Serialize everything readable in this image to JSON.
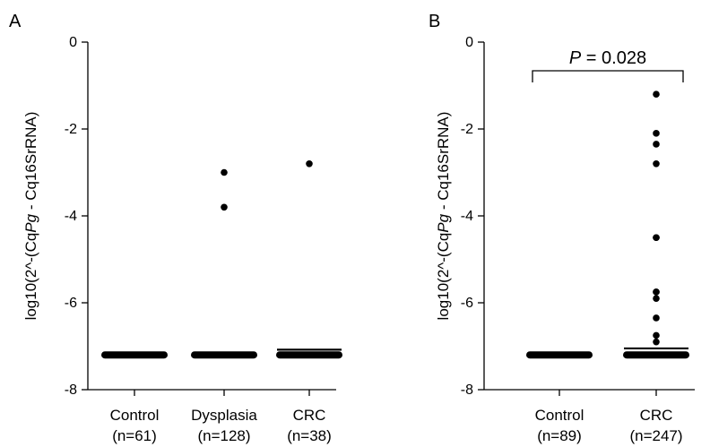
{
  "chart_data": [
    {
      "panel": "A",
      "type": "scatter",
      "ylabel": [
        "log10(2^-(Cq",
        "Pg",
        " - Cq16SrRNA)"
      ],
      "ylim": [
        -8,
        0
      ],
      "yticks": [
        "0",
        "-2",
        "-4",
        "-6",
        "-8"
      ],
      "yticks_values": [
        0,
        -2,
        -4,
        -6,
        -8
      ],
      "categories": [
        {
          "label": "Control",
          "n": "(n=61)"
        },
        {
          "label": "Dysplasia",
          "n": "(n=128)"
        },
        {
          "label": "CRC",
          "n": "(n=38)"
        }
      ],
      "series": [
        {
          "category": "Control",
          "baseline": -7.2,
          "outliers": []
        },
        {
          "category": "Dysplasia",
          "baseline": -7.2,
          "outliers": [
            -3.0,
            -3.8
          ]
        },
        {
          "category": "CRC",
          "baseline": -7.2,
          "outliers": [
            -2.8
          ]
        }
      ],
      "medians": [
        {
          "category": "Dysplasia",
          "value": -7.15
        },
        {
          "category": "CRC",
          "value": -7.08
        }
      ]
    },
    {
      "panel": "B",
      "type": "scatter",
      "ylabel": [
        "log10(2^-(Cq",
        "Pg",
        " - Cq16SrRNA)"
      ],
      "ylim": [
        -8,
        0
      ],
      "yticks": [
        "0",
        "-2",
        "-4",
        "-6",
        "-8"
      ],
      "yticks_values": [
        0,
        -2,
        -4,
        -6,
        -8
      ],
      "categories": [
        {
          "label": "Control",
          "n": "(n=89)"
        },
        {
          "label": "CRC",
          "n": "(n=247)"
        }
      ],
      "series": [
        {
          "category": "Control",
          "baseline": -7.2,
          "outliers": []
        },
        {
          "category": "CRC",
          "baseline": -7.2,
          "outliers": [
            -1.2,
            -2.1,
            -2.35,
            -2.8,
            -4.5,
            -4.5,
            -5.75,
            -5.75,
            -5.9,
            -6.35,
            -6.75,
            -6.9
          ]
        }
      ],
      "medians": [
        {
          "category": "CRC",
          "value": -7.05
        }
      ],
      "annotation": {
        "italic": "P",
        "text": " = 0.028"
      }
    }
  ]
}
